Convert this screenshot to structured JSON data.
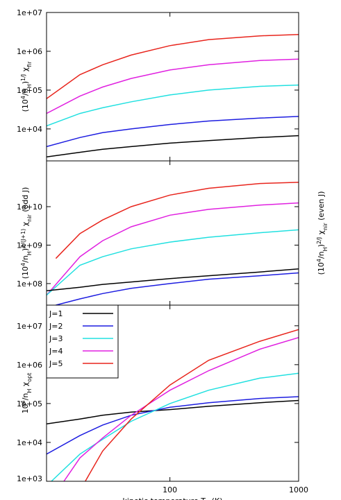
{
  "chart_data": [
    {
      "type": "line",
      "xscale": "log",
      "yscale": "log",
      "xlim": [
        11,
        1000
      ],
      "ylim": [
        1500,
        10000000
      ],
      "yticks": [
        {
          "value": 10000,
          "label": "1e+04"
        },
        {
          "value": 100000,
          "label": "1e+05"
        },
        {
          "value": 1000000,
          "label": "1e+06"
        },
        {
          "value": 10000000,
          "label": "1e+07"
        }
      ],
      "ylabel": [
        {
          "t": "("
        },
        {
          "t": "10",
          "s": "over"
        },
        {
          "t": "4",
          "s": "sup"
        },
        {
          "t": "/n"
        },
        {
          "t": "H",
          "s": "sub"
        },
        {
          "t": ")"
        },
        {
          "t": "1/J",
          "s": "sup"
        },
        {
          "t": " χ"
        },
        {
          "t": "fir",
          "s": "sub"
        }
      ],
      "series": [
        {
          "color": "#e8241c",
          "x": [
            11,
            20,
            30,
            50,
            100,
            200,
            500,
            1000
          ],
          "values": [
            60000,
            250000,
            450000,
            800000,
            1400000,
            2000000,
            2500000,
            2700000
          ]
        },
        {
          "color": "#e020e0",
          "x": [
            11,
            20,
            30,
            50,
            100,
            200,
            500,
            1000
          ],
          "values": [
            25000,
            70000,
            120000,
            200000,
            330000,
            450000,
            580000,
            630000
          ]
        },
        {
          "color": "#20e0e0",
          "x": [
            11,
            20,
            30,
            50,
            100,
            200,
            500,
            1000
          ],
          "values": [
            12000,
            25000,
            35000,
            50000,
            75000,
            100000,
            125000,
            135000
          ]
        },
        {
          "color": "#1c1ce0",
          "x": [
            11,
            20,
            30,
            50,
            100,
            200,
            500,
            1000
          ],
          "values": [
            3500,
            6000,
            8000,
            10000,
            13000,
            16000,
            19000,
            21000
          ]
        },
        {
          "color": "#000000",
          "x": [
            11,
            20,
            30,
            50,
            100,
            200,
            500,
            1000
          ],
          "values": [
            1900,
            2500,
            3000,
            3500,
            4300,
            5000,
            6000,
            6700
          ]
        }
      ]
    },
    {
      "type": "line",
      "xscale": "log",
      "yscale": "log",
      "xlim": [
        11,
        1000
      ],
      "ylim": [
        27500000,
        155000000000
      ],
      "yticks": [
        {
          "value": 100000000,
          "label": "1e+08"
        },
        {
          "value": 1000000000,
          "label": "1e+09"
        },
        {
          "value": 10000000000,
          "label": "1e+10"
        }
      ],
      "ylabel": [
        {
          "t": "("
        },
        {
          "t": "10"
        },
        {
          "t": "4",
          "s": "sup"
        },
        {
          "t": "/n"
        },
        {
          "t": "H",
          "s": "sub"
        },
        {
          "t": ")"
        },
        {
          "t": "2/(J+1)",
          "s": "sup"
        },
        {
          "t": " χ"
        },
        {
          "t": "nir",
          "s": "sub"
        },
        {
          "t": "  (odd J)"
        }
      ],
      "y2label": [
        {
          "t": "("
        },
        {
          "t": "10"
        },
        {
          "t": "4",
          "s": "sup"
        },
        {
          "t": "/n"
        },
        {
          "t": "H",
          "s": "sub"
        },
        {
          "t": ")"
        },
        {
          "t": "2/J",
          "s": "sup"
        },
        {
          "t": " χ"
        },
        {
          "t": "nir",
          "s": "sub"
        },
        {
          "t": "  (even J)"
        }
      ],
      "series": [
        {
          "color": "#e8241c",
          "x": [
            13,
            20,
            30,
            50,
            100,
            200,
            500,
            1000
          ],
          "values": [
            450000000,
            2000000000,
            4500000000,
            10000000000,
            20000000000,
            30000000000,
            40000000000,
            43000000000
          ]
        },
        {
          "color": "#e020e0",
          "x": [
            11,
            20,
            30,
            50,
            100,
            200,
            500,
            1000
          ],
          "values": [
            50000000,
            500000000,
            1300000000,
            3000000000,
            6000000000,
            8500000000,
            11000000000,
            12500000000
          ]
        },
        {
          "color": "#20e0e0",
          "x": [
            11,
            20,
            30,
            50,
            100,
            200,
            500,
            1000
          ],
          "values": [
            50000000,
            300000000,
            500000000,
            800000000,
            1200000000,
            1600000000,
            2100000000,
            2500000000
          ]
        },
        {
          "color": "#000000",
          "x": [
            11,
            20,
            30,
            50,
            100,
            200,
            500,
            1000
          ],
          "values": [
            65000000,
            80000000,
            95000000,
            110000000,
            135000000,
            160000000,
            200000000,
            240000000
          ]
        },
        {
          "color": "#1c1ce0",
          "x": [
            13,
            20,
            30,
            50,
            100,
            200,
            500,
            1000
          ],
          "values": [
            27500000,
            40000000,
            55000000,
            75000000,
            100000000,
            130000000,
            160000000,
            190000000
          ]
        }
      ]
    },
    {
      "type": "line",
      "xscale": "log",
      "yscale": "log",
      "xlim": [
        11,
        1000
      ],
      "ylim": [
        1000,
        34000000
      ],
      "xticks": [
        100,
        1000
      ],
      "yticks": [
        {
          "value": 1000,
          "label": "1e+03"
        },
        {
          "value": 10000,
          "label": "1e+04"
        },
        {
          "value": 100000,
          "label": "1e+05"
        },
        {
          "value": 1000000,
          "label": "1e+06"
        },
        {
          "value": 10000000,
          "label": "1e+07"
        }
      ],
      "ylabel": [
        {
          "t": "10"
        },
        {
          "t": "4",
          "s": "sup"
        },
        {
          "t": "/n"
        },
        {
          "t": "H",
          "s": "sub"
        },
        {
          "t": " χ"
        },
        {
          "t": "opt",
          "s": "sub"
        }
      ],
      "xlabel": [
        {
          "t": "kinetic temperature T"
        },
        {
          "t": "K",
          "s": "sub"
        },
        {
          "t": " (K)"
        }
      ],
      "legend": "upper left",
      "series": [
        {
          "name": "J=1",
          "color": "#000000",
          "x": [
            11,
            20,
            30,
            50,
            100,
            200,
            500,
            1000
          ],
          "values": [
            30000,
            40000,
            50000,
            60000,
            70000,
            85000,
            105000,
            120000
          ]
        },
        {
          "name": "J=2",
          "color": "#1c1ce0",
          "x": [
            11,
            20,
            30,
            50,
            100,
            200,
            500,
            1000
          ],
          "values": [
            5000,
            15000,
            28000,
            50000,
            80000,
            105000,
            135000,
            150000
          ]
        },
        {
          "name": "J=3",
          "color": "#20e0e0",
          "x": [
            12,
            20,
            30,
            50,
            100,
            200,
            500,
            1000
          ],
          "values": [
            1000,
            5000,
            12000,
            35000,
            100000,
            220000,
            450000,
            600000
          ]
        },
        {
          "name": "J=4",
          "color": "#e020e0",
          "x": [
            15,
            20,
            30,
            50,
            100,
            200,
            500,
            1000
          ],
          "values": [
            1000,
            4000,
            13000,
            50000,
            220000,
            700000,
            2500000,
            5000000
          ]
        },
        {
          "name": "J=5",
          "color": "#e8241c",
          "x": [
            22,
            30,
            50,
            100,
            200,
            500,
            1000
          ],
          "values": [
            1000,
            6000,
            40000,
            300000,
            1300000,
            4000000,
            8000000
          ]
        }
      ]
    }
  ]
}
